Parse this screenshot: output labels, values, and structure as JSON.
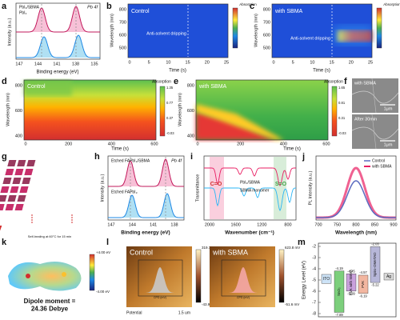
{
  "panels": {
    "a": {
      "label": "a",
      "legend": [
        "PbI₂/SBMA",
        "PbI₂"
      ],
      "note": "Pb 4f",
      "ylabel": "Intensity (a.u.)",
      "xlabel": "Binding energy (eV)",
      "xticks": [
        "147",
        "144",
        "141",
        "138",
        "135"
      ]
    },
    "b": {
      "label": "b",
      "title": "Control",
      "annotation": "Anti-solvent dripping",
      "ylabel": "Wavelength (nm)",
      "xlabel": "Time (s)",
      "xticks": [
        "0",
        "5",
        "10",
        "15",
        "20",
        "25"
      ],
      "yticks": [
        "800",
        "700",
        "600",
        "500"
      ],
      "colorbar_title": "Absorption"
    },
    "c": {
      "label": "c",
      "title": "with SBMA",
      "annotation": "Anti-solvent dripping",
      "ylabel": "Wavelength (nm)",
      "xlabel": "Time (s)",
      "xticks": [
        "0",
        "5",
        "10",
        "15",
        "20",
        "25"
      ],
      "yticks": [
        "800",
        "700",
        "600",
        "500"
      ],
      "colorbar_title": "Absorption"
    },
    "d": {
      "label": "d",
      "title": "Control",
      "ylabel": "Wavelength (nm)",
      "xlabel": "Time (s)",
      "xticks": [
        "0",
        "200",
        "400",
        "600"
      ],
      "yticks": [
        "800",
        "600",
        "400"
      ],
      "colorbar_title": "Absorption",
      "colorbar_ticks": [
        "1.35",
        "0.77",
        "0.37",
        "-0.03"
      ]
    },
    "e": {
      "label": "e",
      "title": "with SBMA",
      "ylabel": "Wavelength (nm)",
      "xlabel": "Time (s)",
      "xticks": [
        "0",
        "200",
        "400",
        "600"
      ],
      "yticks": [
        "800",
        "600",
        "400"
      ],
      "colorbar_title": "Absorption",
      "colorbar_ticks": [
        "1.65",
        "0.81",
        "0.31",
        "-0.03"
      ]
    },
    "f": {
      "label": "f",
      "top_title": "with SBMA",
      "top_scale": "1μm",
      "bottom_title": "After 30min",
      "bottom_scale": "1μm"
    },
    "g": {
      "label": "g",
      "caption": "Self-healing at 60°C for 15 min"
    },
    "h": {
      "label": "h",
      "legend": [
        "Etched FAPbI₃/SBMA",
        "Etched FAPbI₃"
      ],
      "note": "Pb 4f",
      "ylabel": "Intensity (a.u.)",
      "xlabel": "Binding energy (eV)",
      "xticks": [
        "147",
        "144",
        "141",
        "138"
      ]
    },
    "i": {
      "label": "i",
      "legend": [
        "PbI₂/SBMA",
        "SBMA monomer"
      ],
      "bands": [
        "C=O",
        "S=O"
      ],
      "ylabel": "Transmittance",
      "xlabel": "Wavenumber (cm⁻¹)",
      "xticks": [
        "2000",
        "1600",
        "1200",
        "800"
      ]
    },
    "j": {
      "label": "j",
      "legend": [
        "Control",
        "with SBMA"
      ],
      "ylabel": "PL Intensity (a.u.)",
      "xlabel": "Wavelength (nm)",
      "xticks": [
        "700",
        "750",
        "800",
        "850",
        "900"
      ]
    },
    "k": {
      "label": "k",
      "caption": "Dipole moment =\n24.36 Debye",
      "scale_max": "+4.00 eV",
      "scale_min": "-4.00 eV"
    },
    "l": {
      "label": "l",
      "left_title": "Control",
      "left_max": "319.7 mV",
      "left_min": "-43.9 mV",
      "right_title": "with SBMA",
      "right_max": "623.8 mV",
      "right_min": "-51.6 mV",
      "footer": "Potential",
      "scale": "1.5 um",
      "inset_xlabel": "CPD (mV)"
    },
    "m": {
      "label": "m",
      "ylabel": "Energy Level (eV)",
      "yticks": [
        -2,
        -3,
        -4,
        -5,
        -6,
        -7,
        -8
      ],
      "ends": [
        "ITO",
        "Ag"
      ],
      "levels": [
        {
          "name": "SnO₂",
          "color": "#7ccf7c",
          "top": -4.19,
          "bottom": -7.89
        },
        {
          "name": "PVK with SBMA",
          "color": "#c9a0dc",
          "top": -4.45,
          "bottom": -5.99
        },
        {
          "name": "PVK",
          "color": "#f2b6a0",
          "top": -4.57,
          "bottom": -6.19
        },
        {
          "name": "Spiro-OMeTAD",
          "color": "#b7b7d9",
          "top": -2.03,
          "bottom": -5.22
        }
      ]
    }
  }
}
